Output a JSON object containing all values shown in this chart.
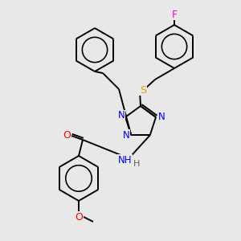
{
  "background_color": "#e8e8e8",
  "bond_color": "#000000",
  "atom_colors": {
    "N": "#0000ff",
    "O": "#ff0000",
    "S": "#ccaa00",
    "F": "#ff00cc",
    "C": "#000000",
    "H": "#606060"
  },
  "figsize": [
    3.0,
    3.0
  ],
  "dpi": 100
}
